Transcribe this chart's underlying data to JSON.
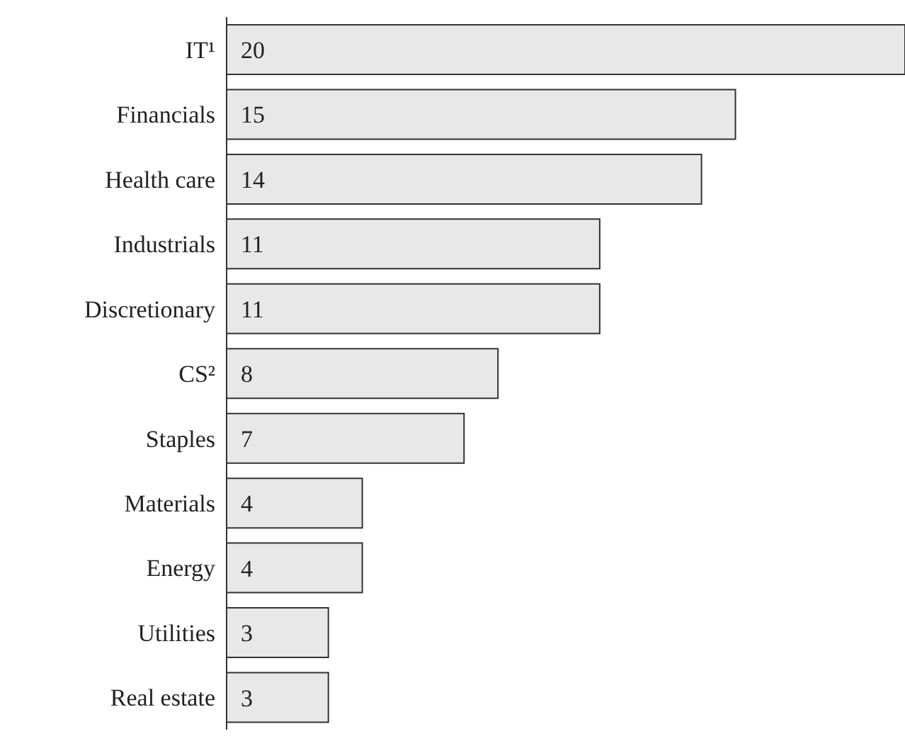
{
  "chart_data": {
    "type": "bar",
    "orientation": "horizontal",
    "data_labels": true,
    "categories": [
      "IT¹",
      "Financials",
      "Health care",
      "Industrials",
      "Discretionary",
      "CS²",
      "Staples",
      "Materials",
      "Energy",
      "Utilities",
      "Real estate"
    ],
    "values": [
      20,
      15,
      14,
      11,
      11,
      8,
      7,
      4,
      4,
      3,
      3
    ],
    "color": "#e8e8e8"
  }
}
